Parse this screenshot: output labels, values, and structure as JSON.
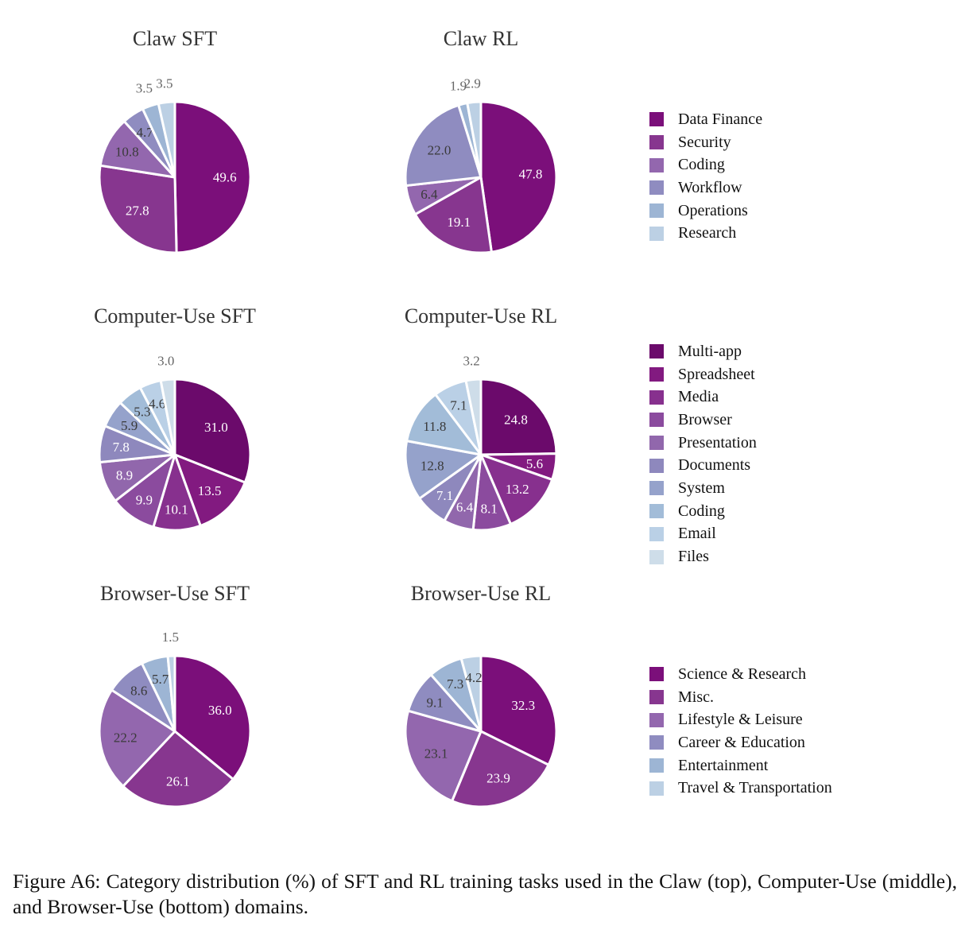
{
  "caption": "Figure A6:  Category distribution (%) of SFT and RL training tasks used in the Claw (top), Computer-Use (middle), and Browser-Use (bottom) domains.",
  "legends": [
    {
      "items": [
        "Data Finance",
        "Security",
        "Coding",
        "Workflow",
        "Operations",
        "Research"
      ],
      "colors": [
        "#7b0f7a",
        "#87368f",
        "#9367ae",
        "#8f8cc0",
        "#9db5d4",
        "#bcd0e4"
      ]
    },
    {
      "items": [
        "Multi-app",
        "Spreadsheet",
        "Media",
        "Browser",
        "Presentation",
        "Documents",
        "System",
        "Coding",
        "Email",
        "Files"
      ],
      "colors": [
        "#6b0a6b",
        "#821a80",
        "#87308e",
        "#8b4b9e",
        "#9167ac",
        "#8e88bd",
        "#95a2cb",
        "#a2bcd8",
        "#bad0e6",
        "#cedde9"
      ]
    },
    {
      "items": [
        "Science & Research",
        "Misc.",
        "Lifestyle & Leisure",
        "Career & Education",
        "Entertainment",
        "Travel & Transportation"
      ],
      "colors": [
        "#7b0f7a",
        "#87368f",
        "#9367ae",
        "#8f8cc0",
        "#9db5d4",
        "#bcd0e4"
      ]
    }
  ],
  "chart_data": [
    {
      "type": "pie",
      "title": "Claw SFT",
      "legend": 0,
      "categories": [
        "Data Finance",
        "Security",
        "Coding",
        "Workflow",
        "Operations",
        "Research"
      ],
      "values": [
        49.6,
        27.8,
        10.8,
        4.7,
        3.5,
        3.5
      ]
    },
    {
      "type": "pie",
      "title": "Claw RL",
      "legend": 0,
      "categories": [
        "Data Finance",
        "Security",
        "Coding",
        "Workflow",
        "Operations",
        "Research"
      ],
      "values": [
        47.8,
        19.1,
        6.4,
        22.0,
        1.9,
        2.9
      ]
    },
    {
      "type": "pie",
      "title": "Computer-Use SFT",
      "legend": 1,
      "categories": [
        "Multi-app",
        "Spreadsheet",
        "Media",
        "Browser",
        "Presentation",
        "Documents",
        "System",
        "Coding",
        "Email",
        "Files"
      ],
      "values": [
        31.0,
        13.5,
        10.1,
        9.9,
        8.9,
        7.8,
        5.9,
        5.3,
        4.6,
        3.0
      ]
    },
    {
      "type": "pie",
      "title": "Computer-Use RL",
      "legend": 1,
      "categories": [
        "Multi-app",
        "Spreadsheet",
        "Media",
        "Browser",
        "Presentation",
        "Documents",
        "System",
        "Coding",
        "Email",
        "Files"
      ],
      "values": [
        24.8,
        5.6,
        13.2,
        8.1,
        6.4,
        7.1,
        12.8,
        11.8,
        7.1,
        3.2
      ]
    },
    {
      "type": "pie",
      "title": "Browser-Use SFT",
      "legend": 2,
      "categories": [
        "Science & Research",
        "Misc.",
        "Lifestyle & Leisure",
        "Career & Education",
        "Entertainment",
        "Travel & Transportation"
      ],
      "values": [
        36.0,
        26.1,
        22.2,
        8.6,
        5.7,
        1.5
      ]
    },
    {
      "type": "pie",
      "title": "Browser-Use RL",
      "legend": 2,
      "categories": [
        "Science & Research",
        "Misc.",
        "Lifestyle & Leisure",
        "Career & Education",
        "Entertainment",
        "Travel & Transportation"
      ],
      "values": [
        32.3,
        23.9,
        23.1,
        9.1,
        7.3,
        4.2
      ]
    }
  ]
}
